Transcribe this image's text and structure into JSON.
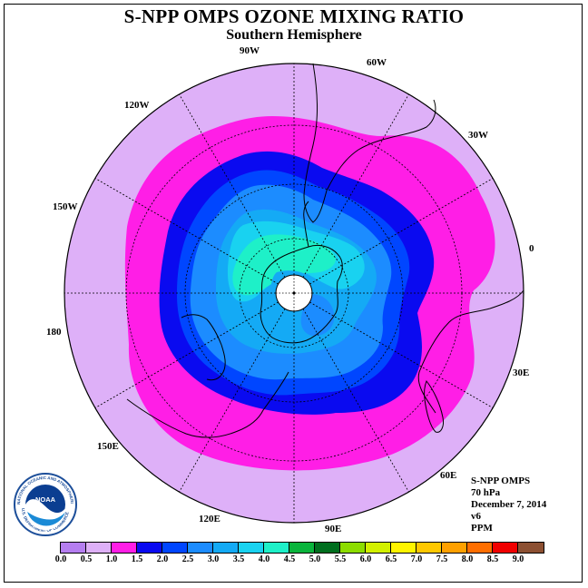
{
  "title": "S-NPP OMPS OZONE MIXING RATIO",
  "subtitle": "Southern Hemisphere",
  "longitude_labels": [
    "90W",
    "60W",
    "30W",
    "0",
    "30E",
    "60E",
    "90E",
    "120E",
    "150E",
    "180",
    "150W",
    "120W"
  ],
  "info": {
    "instrument": "S-NPP OMPS",
    "level": "70 hPa",
    "date": "December 7, 2014",
    "version": "v6",
    "units": "PPM"
  },
  "logo": {
    "text": "NOAA",
    "ring_text": "NATIONAL OCEANIC AND ATMOSPHERIC ADMINISTRATION",
    "ring_text_bottom": "U.S. DEPARTMENT OF COMMERCE"
  },
  "colorbar": {
    "ticks": [
      "0.0",
      "0.5",
      "1.0",
      "1.5",
      "2.0",
      "2.5",
      "3.0",
      "3.5",
      "4.0",
      "4.5",
      "5.0",
      "5.5",
      "6.0",
      "6.5",
      "7.0",
      "7.5",
      "8.0",
      "8.5",
      "9.0"
    ],
    "colors": [
      "#b57ef0",
      "#deb0f8",
      "#ff1ee6",
      "#0a0af0",
      "#0046ff",
      "#1c8cff",
      "#14aaf5",
      "#19d2f0",
      "#1ef0c8",
      "#0ab43c",
      "#006e1e",
      "#8cdc00",
      "#d2f000",
      "#fff500",
      "#ffc800",
      "#ffa000",
      "#ff6e00",
      "#f00000",
      "#8c5032"
    ]
  },
  "chart_data": {
    "type": "heatmap",
    "projection": "south polar stereographic",
    "variable": "ozone mixing ratio",
    "units": "PPM",
    "pressure_level": "70 hPa",
    "date": "December 7, 2014",
    "levels": [
      0.0,
      0.5,
      1.0,
      1.5,
      2.0,
      2.5,
      3.0,
      3.5,
      4.0,
      4.5,
      5.0,
      5.5,
      6.0,
      6.5,
      7.0,
      7.5,
      8.0,
      8.5,
      9.0
    ],
    "bands": [
      {
        "range": [
          0.5,
          1.0
        ],
        "color": "#deb0f8"
      },
      {
        "range": [
          1.0,
          1.5
        ],
        "color": "#ff1ee6"
      },
      {
        "range": [
          1.5,
          2.0
        ],
        "color": "#0a0af0"
      },
      {
        "range": [
          2.0,
          2.5
        ],
        "color": "#0046ff"
      },
      {
        "range": [
          2.5,
          3.0
        ],
        "color": "#1c8cff"
      },
      {
        "range": [
          3.0,
          3.5
        ],
        "color": "#14aaf5"
      },
      {
        "range": [
          3.5,
          4.0
        ],
        "color": "#19d2f0"
      },
      {
        "range": [
          4.0,
          4.5
        ],
        "color": "#1ef0c8"
      }
    ],
    "missing_data_color": "#ffffff"
  }
}
